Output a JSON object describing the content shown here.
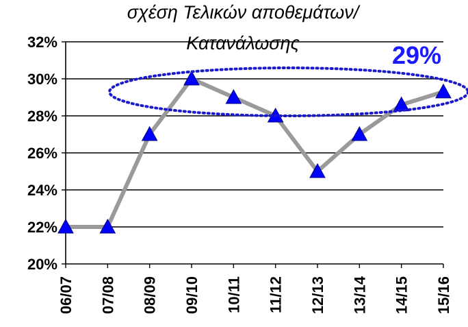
{
  "chart_data": {
    "type": "line",
    "title_line1": "σχέση Τελικών αποθεμάτων/",
    "title_line2": "Κατανάλωσης",
    "categories": [
      "06/07",
      "07/08",
      "08/09",
      "09/10",
      "10/11",
      "11/12",
      "12/13",
      "13/14",
      "14/15",
      "15/16"
    ],
    "series": [
      {
        "values": [
          22,
          22,
          27,
          30,
          29,
          28,
          25,
          27,
          28.6,
          29.3
        ]
      }
    ],
    "ylim": [
      20,
      32
    ],
    "y_ticks": [
      20,
      22,
      24,
      26,
      28,
      30,
      32
    ],
    "y_tick_labels": [
      "20%",
      "22%",
      "24%",
      "26%",
      "28%",
      "30%",
      "32%"
    ],
    "grid": true,
    "annotation": {
      "text": "29%",
      "color": "#1a1aff"
    },
    "colors": {
      "line": "#9a9a9a",
      "marker": "#0000ff",
      "ellipse": "#1a1acc"
    }
  }
}
